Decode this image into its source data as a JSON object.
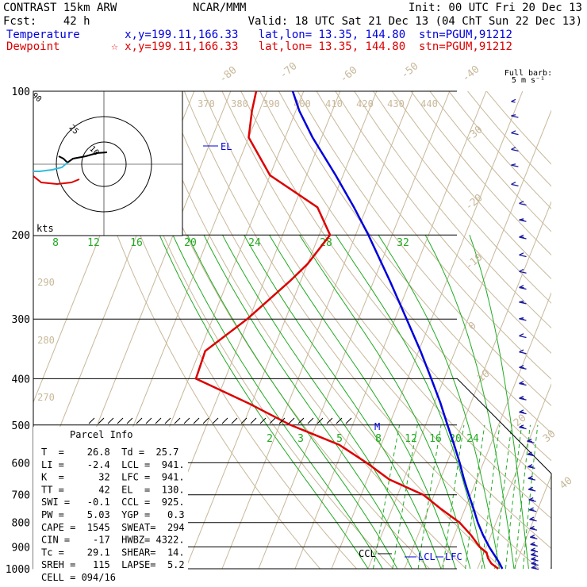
{
  "header": {
    "model": "CONTRAST 15km ARW",
    "fcst": "Fcst:    42 h",
    "source": "NCAR/MMM",
    "init": "Init: 00 UTC Fri 20 Dec 13",
    "valid": "Valid: 18 UTC Sat 21 Dec 13 (04 ChT Sun 22 Dec 13)",
    "temperature_label": "Temperature",
    "dewpoint_label": "Dewpoint",
    "temp_info": "x,y=199.11,166.33   lat,lon= 13.35, 144.80  stn=PGUM,91212",
    "dew_info": "☆ x,y=199.11,166.33   lat,lon= 13.35, 144.80  stn=PGUM,91212",
    "barb_note_1": "Full barb:",
    "barb_note_2": "5 m s⁻¹"
  },
  "colors": {
    "temperature": "#0000dd",
    "dewpoint": "#dd0000",
    "dry_adiabat": "#c8b89a",
    "moist_adiabat": "#22aa22",
    "grid": "#000000",
    "barb": "#1a1aa0",
    "hodo_cyan": "#33bbdd"
  },
  "chart_data": {
    "type": "skew-t log-p sounding",
    "pressure_levels": [
      "100",
      "200",
      "300",
      "400",
      "500",
      "600",
      "700",
      "800",
      "900",
      "1000"
    ],
    "isotherm_labels": [
      "-80",
      "-70",
      "-60",
      "-50",
      "-40",
      "-30",
      "-20",
      "-10",
      "0",
      "10",
      "20",
      "30",
      "40"
    ],
    "theta_labels": [
      "370",
      "380",
      "390",
      "400",
      "410",
      "420",
      "430",
      "440"
    ],
    "theta_side_labels": [
      "290",
      "280",
      "270"
    ],
    "mixing_ratio_upper": [
      "8",
      "12",
      "16",
      "20",
      "24",
      "28",
      "32"
    ],
    "mixing_ratio_lower": [
      "2",
      "3",
      "5",
      "8",
      "12",
      "16",
      "20",
      "24"
    ],
    "level_markers": {
      "el": "EL",
      "m": "M",
      "ccl": "CCL",
      "lcl": "LCL",
      "lfc": "LFC"
    },
    "temperature_profile": [
      {
        "p": 1000,
        "t": 26.8
      },
      {
        "p": 975,
        "t": 25.5
      },
      {
        "p": 950,
        "t": 24.0
      },
      {
        "p": 925,
        "t": 22.4
      },
      {
        "p": 900,
        "t": 20.8
      },
      {
        "p": 850,
        "t": 17.8
      },
      {
        "p": 800,
        "t": 15.0
      },
      {
        "p": 750,
        "t": 12.4
      },
      {
        "p": 700,
        "t": 9.5
      },
      {
        "p": 650,
        "t": 6.5
      },
      {
        "p": 600,
        "t": 3.5
      },
      {
        "p": 550,
        "t": 0.0
      },
      {
        "p": 500,
        "t": -4.0
      },
      {
        "p": 450,
        "t": -8.3
      },
      {
        "p": 400,
        "t": -13.5
      },
      {
        "p": 350,
        "t": -19.5
      },
      {
        "p": 300,
        "t": -26.8
      },
      {
        "p": 250,
        "t": -35.5
      },
      {
        "p": 200,
        "t": -46.5
      },
      {
        "p": 175,
        "t": -53.5
      },
      {
        "p": 150,
        "t": -62.0
      },
      {
        "p": 125,
        "t": -72.5
      },
      {
        "p": 110,
        "t": -79.0
      },
      {
        "p": 100,
        "t": -83.0
      }
    ],
    "dewpoint_profile": [
      {
        "p": 1000,
        "t": 25.7
      },
      {
        "p": 975,
        "t": 23.2
      },
      {
        "p": 950,
        "t": 21.7
      },
      {
        "p": 925,
        "t": 20.7
      },
      {
        "p": 900,
        "t": 18.2
      },
      {
        "p": 850,
        "t": 14.5
      },
      {
        "p": 800,
        "t": 10.0
      },
      {
        "p": 750,
        "t": 3.5
      },
      {
        "p": 700,
        "t": -3.0
      },
      {
        "p": 650,
        "t": -14.0
      },
      {
        "p": 600,
        "t": -22.0
      },
      {
        "p": 550,
        "t": -31.5
      },
      {
        "p": 500,
        "t": -47.0
      },
      {
        "p": 450,
        "t": -61.0
      },
      {
        "p": 400,
        "t": -78.0
      },
      {
        "p": 350,
        "t": -78.5
      },
      {
        "p": 300,
        "t": -70.5
      },
      {
        "p": 250,
        "t": -63.0
      },
      {
        "p": 230,
        "t": -60.0
      },
      {
        "p": 200,
        "t": -57.0
      },
      {
        "p": 175,
        "t": -63.5
      },
      {
        "p": 150,
        "t": -80.0
      },
      {
        "p": 125,
        "t": -90.0
      },
      {
        "p": 110,
        "t": -92.0
      },
      {
        "p": 100,
        "t": -93.0
      }
    ],
    "wind_barbs": [
      {
        "p": 104,
        "dir": 80,
        "spd": 5
      },
      {
        "p": 112,
        "dir": 85,
        "spd": 10
      },
      {
        "p": 121,
        "dir": 80,
        "spd": 10
      },
      {
        "p": 131,
        "dir": 80,
        "spd": 10
      },
      {
        "p": 142,
        "dir": 85,
        "spd": 10
      },
      {
        "p": 155,
        "dir": 80,
        "spd": 10
      },
      {
        "p": 170,
        "dir": 80,
        "spd": 10
      },
      {
        "p": 185,
        "dir": 85,
        "spd": 15
      },
      {
        "p": 200,
        "dir": 80,
        "spd": 15
      },
      {
        "p": 218,
        "dir": 80,
        "spd": 10
      },
      {
        "p": 236,
        "dir": 80,
        "spd": 10
      },
      {
        "p": 255,
        "dir": 80,
        "spd": 15
      },
      {
        "p": 275,
        "dir": 85,
        "spd": 15
      },
      {
        "p": 298,
        "dir": 85,
        "spd": 15
      },
      {
        "p": 322,
        "dir": 80,
        "spd": 10
      },
      {
        "p": 348,
        "dir": 80,
        "spd": 10
      },
      {
        "p": 375,
        "dir": 80,
        "spd": 15
      },
      {
        "p": 405,
        "dir": 80,
        "spd": 15
      },
      {
        "p": 435,
        "dir": 80,
        "spd": 15
      },
      {
        "p": 465,
        "dir": 80,
        "spd": 15
      },
      {
        "p": 500,
        "dir": 80,
        "spd": 15
      },
      {
        "p": 535,
        "dir": 80,
        "spd": 15
      },
      {
        "p": 570,
        "dir": 80,
        "spd": 15
      },
      {
        "p": 605,
        "dir": 80,
        "spd": 15
      },
      {
        "p": 640,
        "dir": 80,
        "spd": 15
      },
      {
        "p": 675,
        "dir": 80,
        "spd": 15
      },
      {
        "p": 710,
        "dir": 80,
        "spd": 15
      },
      {
        "p": 745,
        "dir": 80,
        "spd": 15
      },
      {
        "p": 780,
        "dir": 80,
        "spd": 15
      },
      {
        "p": 815,
        "dir": 80,
        "spd": 15
      },
      {
        "p": 850,
        "dir": 80,
        "spd": 15
      },
      {
        "p": 880,
        "dir": 80,
        "spd": 15
      },
      {
        "p": 905,
        "dir": 80,
        "spd": 15
      },
      {
        "p": 925,
        "dir": 80,
        "spd": 15
      },
      {
        "p": 945,
        "dir": 80,
        "spd": 15
      },
      {
        "p": 965,
        "dir": 80,
        "spd": 15
      },
      {
        "p": 985,
        "dir": 80,
        "spd": 15
      }
    ],
    "hodograph": {
      "ring_labels": [
        "25",
        "10"
      ],
      "units": "kts"
    }
  },
  "parcel_info": {
    "title": "Parcel Info",
    "rows": [
      "T  =    26.8  Td =  25.7",
      "LI =    -2.4  LCL =  941.",
      "K  =      32  LFC =  941.",
      "TT =      42  EL  =  130.",
      "SWI =   -0.1  CCL =  925.",
      "PW =    5.03  YGP =   0.3",
      "CAPE =  1545  SWEAT=  294",
      "CIN =    -17  HWBZ= 4322.",
      "Tc =    29.1  SHEAR=  14.",
      "SREH =   115  LAPSE=  5.2",
      "CELL = 094/16"
    ]
  }
}
